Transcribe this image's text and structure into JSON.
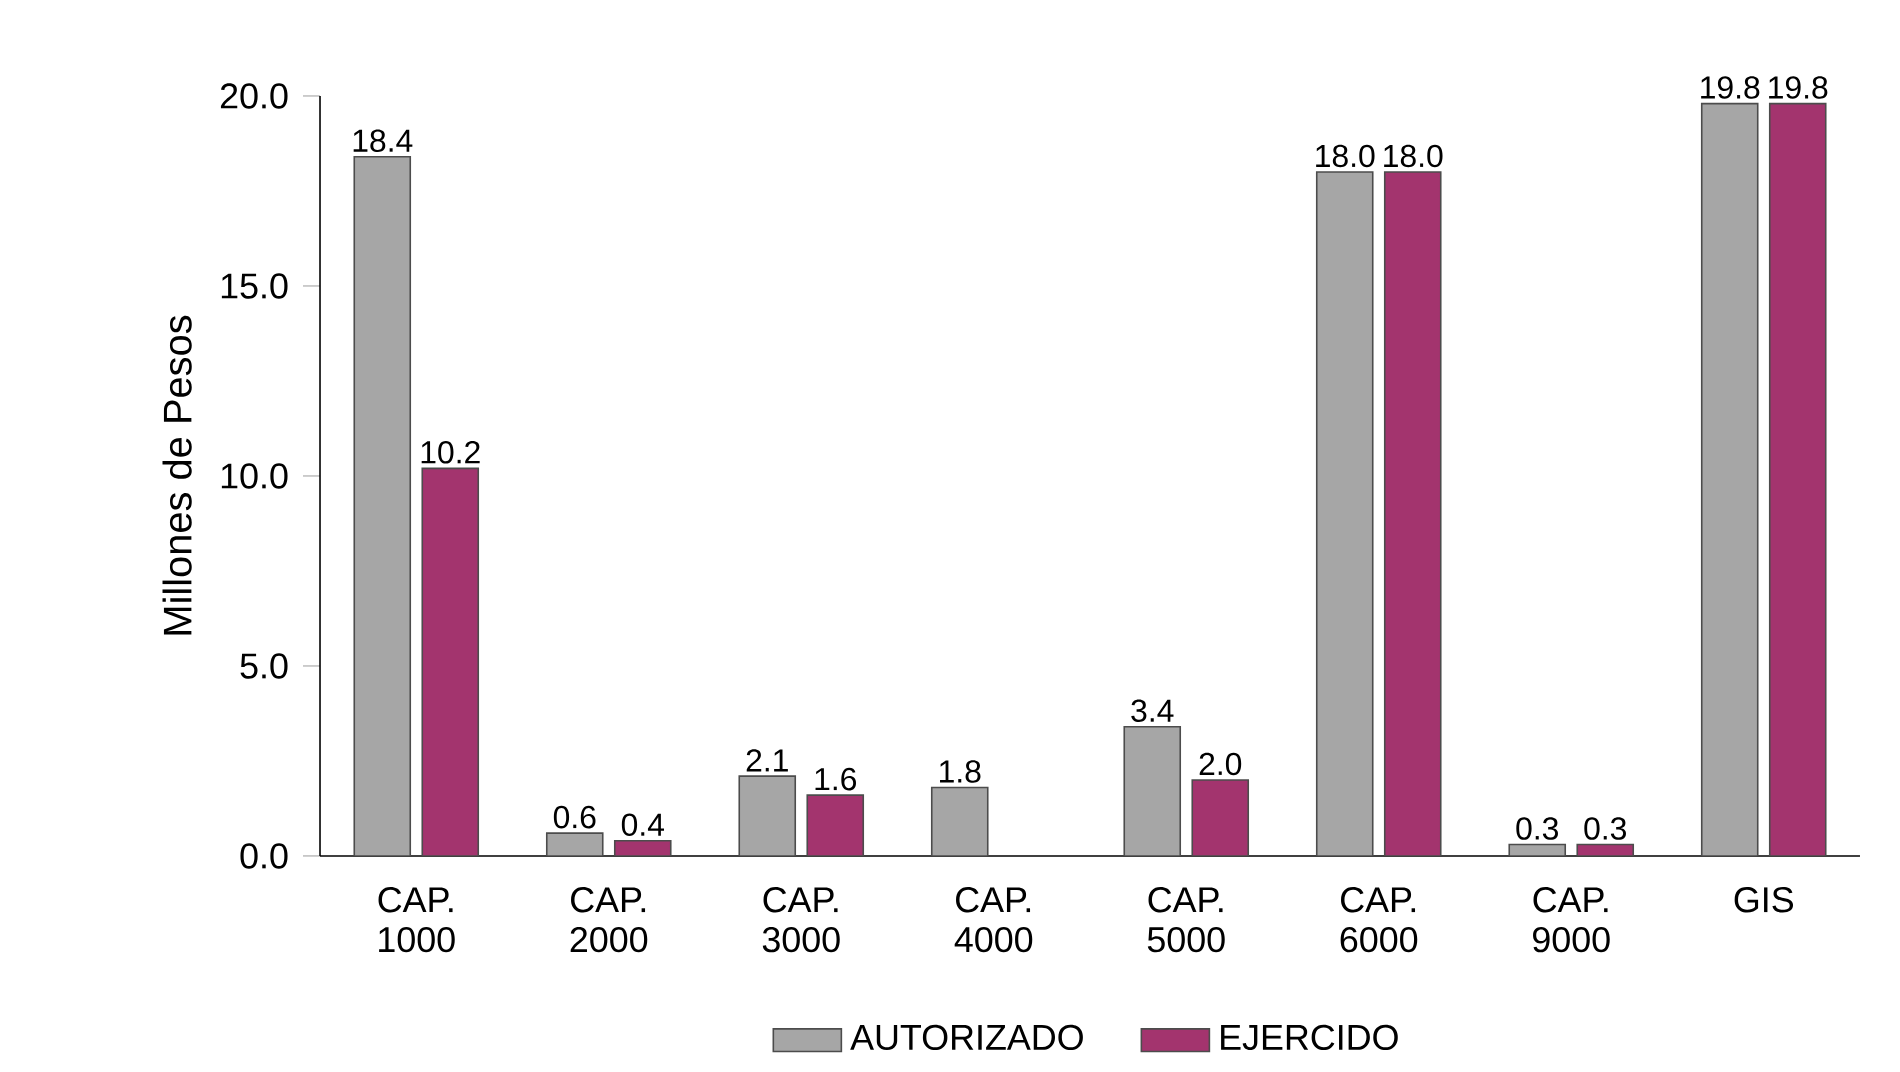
{
  "chart_data": {
    "type": "bar",
    "ylabel": "Millones de Pesos",
    "categories": [
      "CAP. 1000",
      "CAP. 2000",
      "CAP. 3000",
      "CAP. 4000",
      "CAP. 5000",
      "CAP. 6000",
      "CAP. 9000",
      "GIS"
    ],
    "series": [
      {
        "name": "AUTORIZADO",
        "color": "#a6a6a6",
        "values": [
          18.4,
          0.6,
          2.1,
          1.8,
          3.4,
          18.0,
          0.3,
          19.8
        ],
        "value_labels": [
          "18.4",
          "0.6",
          "2.1",
          "1.8",
          "3.4",
          "18.0",
          "0.3",
          "19.8"
        ]
      },
      {
        "name": "EJERCIDO",
        "color": "#a3346e",
        "values": [
          10.2,
          0.4,
          1.6,
          null,
          2.0,
          18.0,
          0.3,
          19.8
        ],
        "value_labels": [
          "10.2",
          "0.4",
          "1.6",
          null,
          "2.0",
          "18.0",
          "0.3",
          "19.8"
        ]
      }
    ],
    "ylim": [
      0,
      20
    ],
    "yticks": [
      {
        "value": 0,
        "label": "0.0"
      },
      {
        "value": 5,
        "label": "5.0"
      },
      {
        "value": 10,
        "label": "10.0"
      },
      {
        "value": 15,
        "label": "15.0"
      },
      {
        "value": 20,
        "label": "20.0"
      }
    ],
    "legend": "bottom",
    "grid": false
  }
}
